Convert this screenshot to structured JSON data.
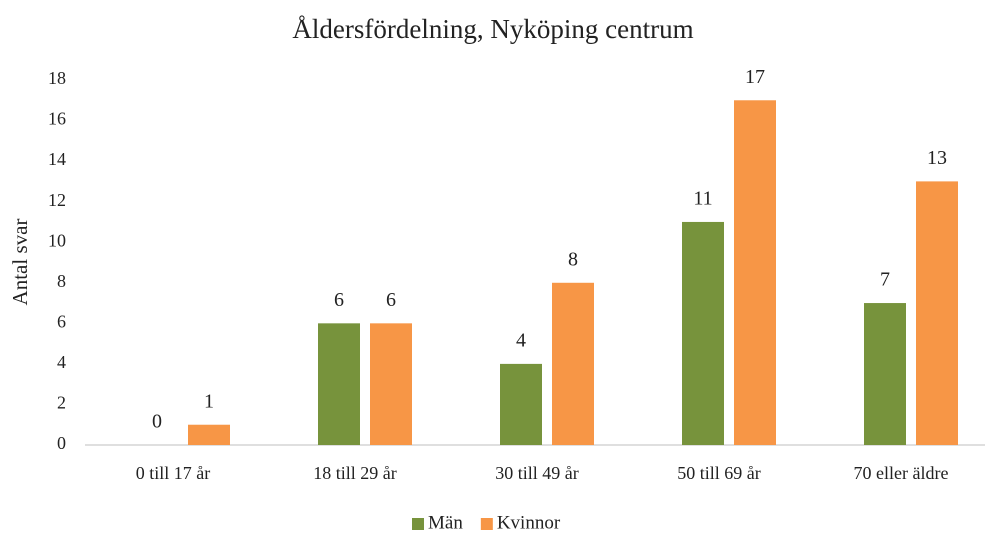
{
  "chart_data": {
    "type": "bar",
    "title": "Åldersfördelning, Nyköping centrum",
    "ylabel": "Antal svar",
    "categories": [
      "0 till 17 år",
      "18 till 29 år",
      "30 till 49 år",
      "50 till 69 år",
      "70 eller äldre"
    ],
    "series": [
      {
        "name": "Män",
        "color": "#77933c",
        "values": [
          0,
          6,
          4,
          11,
          7
        ]
      },
      {
        "name": "Kvinnor",
        "color": "#f79646",
        "values": [
          1,
          6,
          8,
          17,
          13
        ]
      }
    ],
    "ylim": [
      0,
      18
    ],
    "yticks": [
      0,
      2,
      4,
      6,
      8,
      10,
      12,
      14,
      16,
      18
    ],
    "grid": false,
    "legend": "bottom"
  }
}
